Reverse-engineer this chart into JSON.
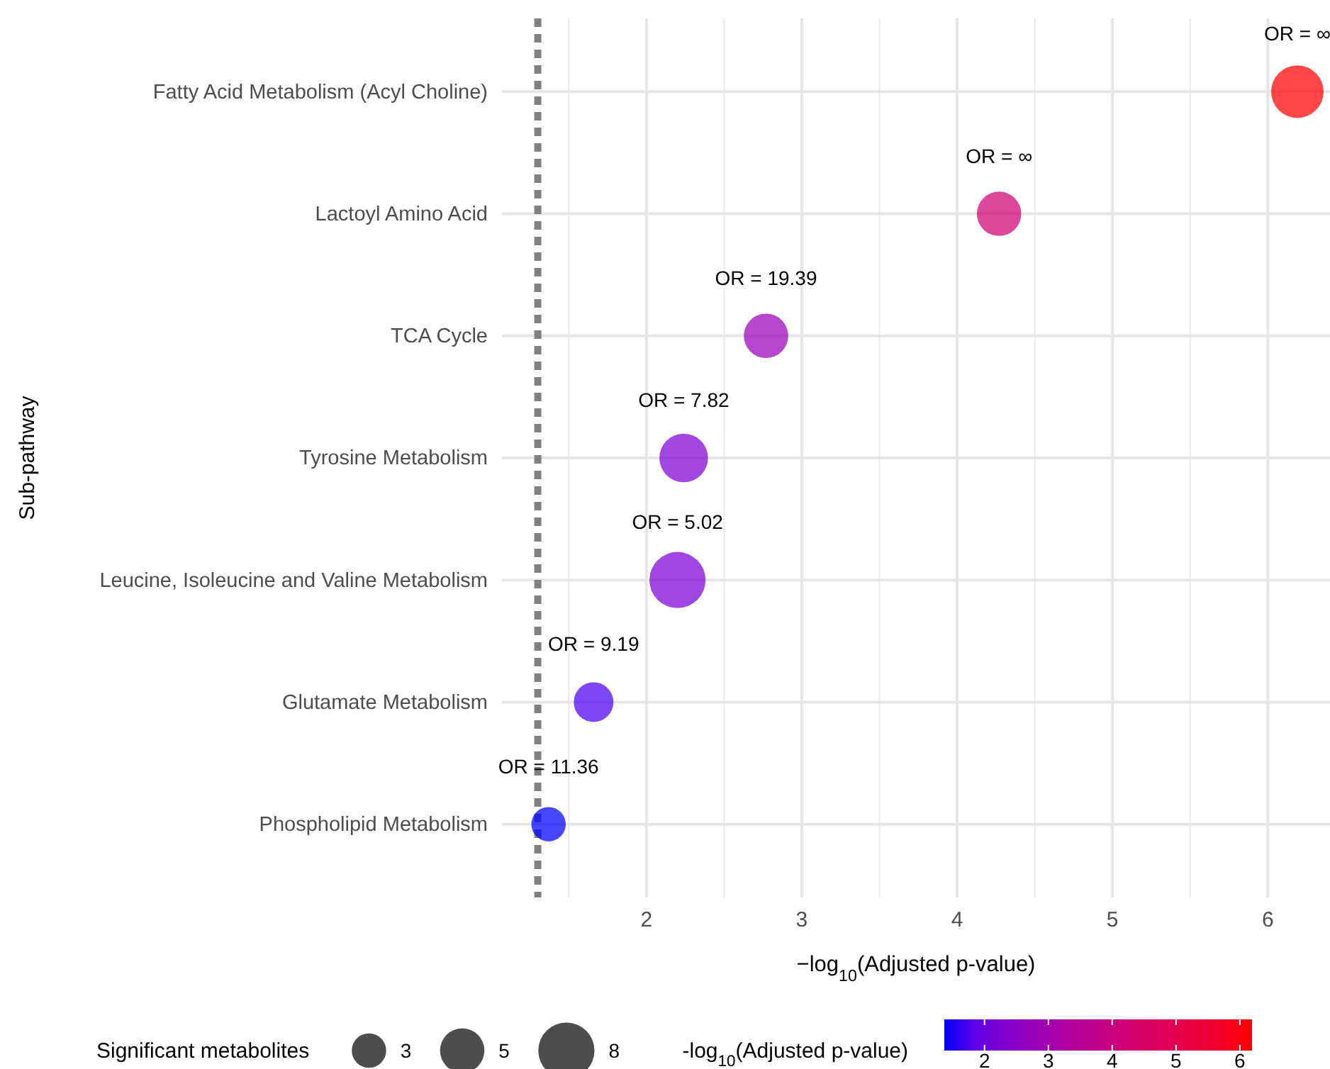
{
  "chart_data": {
    "type": "bubble",
    "categories": [
      "Fatty Acid Metabolism (Acyl Choline)",
      "Lactoyl Amino Acid",
      "TCA Cycle",
      "Tyrosine Metabolism",
      "Leucine, Isoleucine and Valine Metabolism",
      "Glutamate Metabolism",
      "Phospholipid Metabolism"
    ],
    "orientation": "horizontal",
    "values": [
      6.19,
      4.27,
      2.77,
      2.24,
      2.2,
      1.66,
      1.37
    ],
    "cvalues": [
      6.19,
      4.27,
      2.77,
      2.24,
      2.2,
      1.66,
      1.37
    ],
    "sizes": [
      7,
      5,
      5,
      6,
      8,
      4,
      3
    ],
    "size_legend": [
      3,
      5,
      8
    ],
    "xlim": [
      1.07,
      6.4
    ],
    "xticks": [
      2,
      3,
      4,
      5,
      6
    ],
    "clim": [
      1.37,
      6.19
    ],
    "cticks": [
      2,
      3,
      4,
      5,
      6
    ],
    "xlabel": "−log$_{10}$(Adjusted p-value)",
    "ylabel": "Sub-pathway",
    "legend_title": "Significant metabolites",
    "clabel": "-log$_{10}$(Adjusted p-value)",
    "grid": true,
    "ref_lines": [
      {
        "axis": "x",
        "value": 1.301,
        "color": "#808080",
        "line_style": "dashed"
      }
    ],
    "annotations": [
      {
        "text": "OR = ∞",
        "x": 6.19,
        "y": "Fatty Acid Metabolism (Acyl Choline)"
      },
      {
        "text": "OR = ∞",
        "x": 4.27,
        "y": "Lactoyl Amino Acid"
      },
      {
        "text": "OR = 19.39",
        "x": 2.77,
        "y": "TCA Cycle"
      },
      {
        "text": "OR = 7.82",
        "x": 2.24,
        "y": "Tyrosine Metabolism"
      },
      {
        "text": "OR = 5.02",
        "x": 2.2,
        "y": "Leucine, Isoleucine and Valine Metabolism"
      },
      {
        "text": "OR = 9.19",
        "x": 1.66,
        "y": "Glutamate Metabolism"
      },
      {
        "text": "OR = 11.36",
        "x": 1.37,
        "y": "Phospholipid Metabolism"
      }
    ]
  }
}
